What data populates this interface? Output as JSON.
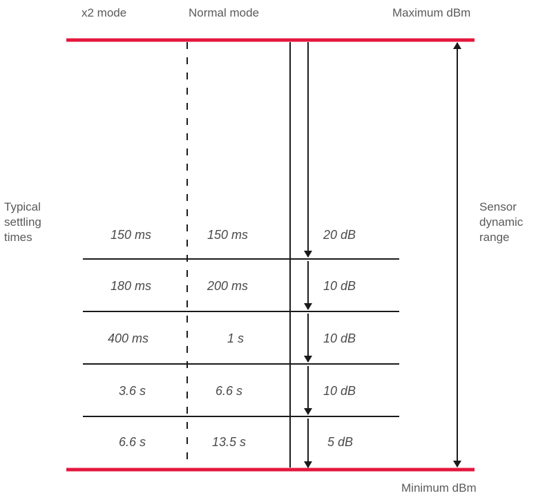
{
  "header": {
    "x2_mode": "x2 mode",
    "normal_mode": "Normal mode",
    "maximum": "Maximum dBm"
  },
  "footer": {
    "minimum": "Minimum dBm"
  },
  "left_label": [
    "Typical",
    "settling",
    "times"
  ],
  "right_label": [
    "Sensor",
    "dynamic",
    "range"
  ],
  "rows": [
    {
      "x2": "150 ms",
      "normal": "150 ms",
      "range": "20 dB"
    },
    {
      "x2": "180 ms",
      "normal": "200 ms",
      "range": "10 dB"
    },
    {
      "x2": "400 ms",
      "normal": "1 s",
      "range": "10 dB"
    },
    {
      "x2": "3.6 s",
      "normal": "6.6 s",
      "range": "10 dB"
    },
    {
      "x2": "6.6 s",
      "normal": "13.5 s",
      "range": "5 dB"
    }
  ],
  "colors": {
    "limit_line": "#e4173e",
    "line": "#1a1a1a",
    "text": "#555555"
  }
}
